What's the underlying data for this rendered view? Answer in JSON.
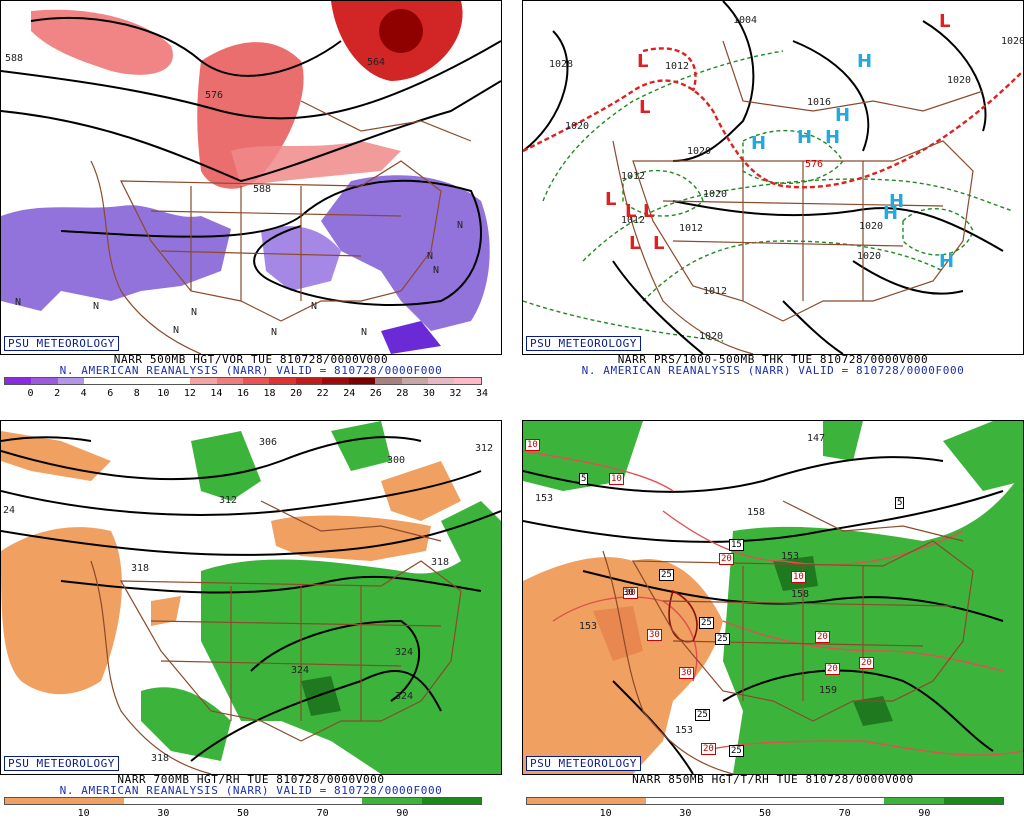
{
  "branding": "PSU METEOROLOGY",
  "panels": {
    "p500": {
      "caption1": "NARR 500MB HGT/VOR TUE 810728/0000V000",
      "caption2": "N. AMERICAN REANALYSIS (NARR) VALID = 810728/0000F000",
      "ticks": [
        "0",
        "2",
        "4",
        "6",
        "8",
        "10",
        "12",
        "14",
        "16",
        "18",
        "20",
        "22",
        "24",
        "26",
        "28",
        "30",
        "32",
        "34"
      ],
      "labels": [
        "588",
        "576",
        "564",
        "588"
      ],
      "n_marks": [
        "N",
        "N",
        "N",
        "N",
        "N",
        "N",
        "N",
        "N",
        "N",
        "N"
      ]
    },
    "pmsl": {
      "caption1": "NARR PRS/1000-500MB THK TUE 810728/0000V000",
      "caption2": "N. AMERICAN REANALYSIS (NARR) VALID = 810728/0000F000",
      "labels": [
        "1004",
        "1028",
        "1012",
        "1020",
        "1016",
        "1020",
        "1020",
        "1012",
        "1012",
        "1020",
        "1020",
        "1012",
        "1020",
        "1012",
        "1020",
        "1020",
        "576"
      ],
      "highs": [
        "H",
        "H",
        "H",
        "H",
        "H",
        "H",
        "H",
        "H"
      ],
      "lows": [
        "L",
        "L",
        "L",
        "L",
        "L",
        "L",
        "L",
        "L"
      ]
    },
    "p700": {
      "caption1": "NARR 700MB HGT/RH TUE 810728/0000V000",
      "caption2": "N. AMERICAN REANALYSIS (NARR) VALID = 810728/0000F000",
      "ticks": [
        "10",
        "30",
        "50",
        "70",
        "90"
      ],
      "labels": [
        "306",
        "300",
        "312",
        "312",
        "24",
        "318",
        "318",
        "324",
        "324",
        "324",
        "318"
      ]
    },
    "p850": {
      "caption1": "NARR 850MB HGT/T/RH TUE 810728/0000V000",
      "ticks": [
        "10",
        "30",
        "50",
        "70",
        "90"
      ],
      "labels": [
        "147",
        "153",
        "158",
        "153",
        "158",
        "153",
        "159",
        "153"
      ],
      "red_boxes": [
        "10",
        "10",
        "20",
        "20",
        "30",
        "30",
        "30",
        "10",
        "20",
        "20",
        "20"
      ],
      "black_boxes": [
        "5",
        "5",
        "15",
        "25",
        "25",
        "25",
        "30",
        "25",
        "25"
      ]
    }
  },
  "colors": {
    "vor_scale": [
      "#8a2be2",
      "#9b59e0",
      "#b595e8",
      "#ffffff",
      "#ffffff",
      "#ffffff",
      "#ffffff",
      "#f4a3a3",
      "#ef7d7d",
      "#e85555",
      "#dd3333",
      "#c01c1c",
      "#9e0b0b",
      "#7a0000",
      "#a88080",
      "#c9a6a6",
      "#e9b7c4",
      "#ffb8c8"
    ],
    "rh_scale": [
      "#f0a060",
      "#f0a060",
      "#ffffff",
      "#ffffff",
      "#ffffff",
      "#ffffff",
      "#3cb43c",
      "#1a8a1a"
    ]
  }
}
